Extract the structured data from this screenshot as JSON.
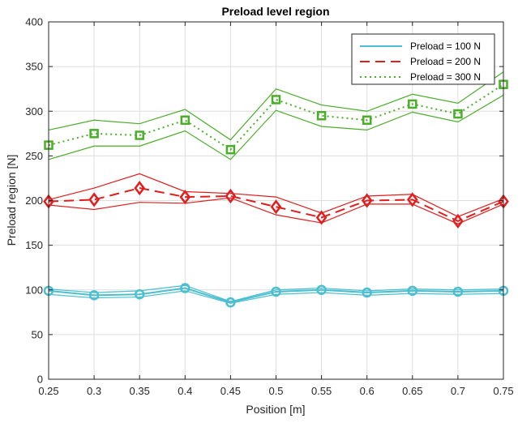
{
  "chart_data": {
    "type": "line",
    "title": "Preload level region",
    "xlabel": "Position [m]",
    "ylabel": "Preload region [N]",
    "xlim": [
      0.25,
      0.75
    ],
    "ylim": [
      0,
      400
    ],
    "grid": true,
    "legend_position": "top-right",
    "x": [
      0.25,
      0.3,
      0.35,
      0.4,
      0.45,
      0.5,
      0.55,
      0.6,
      0.65,
      0.7,
      0.75
    ],
    "x_tick_labels": [
      "0.25",
      "0.3",
      "0.35",
      "0.4",
      "0.45",
      "0.5",
      "0.55",
      "0.6",
      "0.65",
      "0.7",
      "0.75"
    ],
    "y_ticks": [
      0,
      50,
      100,
      150,
      200,
      250,
      300,
      350,
      400
    ],
    "y_tick_labels": [
      "0",
      "50",
      "100",
      "150",
      "200",
      "250",
      "300",
      "350",
      "400"
    ],
    "series": [
      {
        "name": "Preload = 100 N",
        "color": "#4bbfcf",
        "line_style": "solid",
        "marker": "circle",
        "values": [
          99,
          94,
          95,
          102,
          86,
          98,
          100,
          97,
          99,
          98,
          99
        ],
        "upper": [
          101,
          97,
          99,
          105,
          87,
          100,
          102,
          99,
          101,
          100,
          101
        ],
        "lower": [
          95,
          91,
          92,
          99,
          85,
          95,
          97,
          94,
          96,
          95,
          96
        ]
      },
      {
        "name": "Preload = 200 N",
        "color": "#e01e1e",
        "line_style": "dashed",
        "marker": "diamond",
        "values": [
          199,
          201,
          214,
          204,
          205,
          193,
          181,
          200,
          201,
          177,
          199
        ],
        "upper": [
          201,
          214,
          230,
          210,
          208,
          204,
          186,
          205,
          207,
          182,
          202
        ],
        "lower": [
          195,
          190,
          198,
          197,
          203,
          184,
          175,
          196,
          196,
          174,
          196
        ]
      },
      {
        "name": "Preload = 300 N",
        "color": "#4aae28",
        "line_style": "dotted",
        "marker": "square",
        "values": [
          262,
          275,
          273,
          290,
          257,
          313,
          295,
          290,
          308,
          297,
          330
        ],
        "upper": [
          279,
          290,
          286,
          302,
          268,
          325,
          307,
          300,
          319,
          309,
          344
        ],
        "lower": [
          246,
          261,
          261,
          278,
          246,
          301,
          283,
          279,
          299,
          288,
          318
        ]
      }
    ]
  }
}
